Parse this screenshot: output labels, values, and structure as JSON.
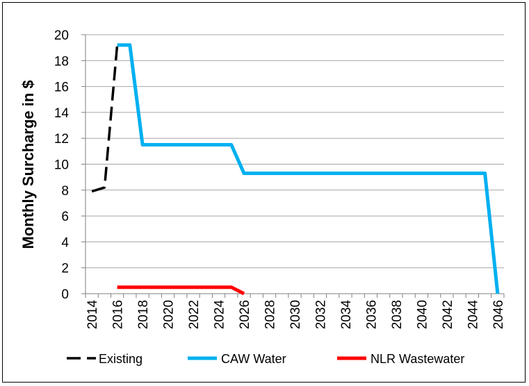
{
  "chart_data": {
    "type": "line",
    "title": "",
    "xlabel": "",
    "ylabel": "Monthly Surcharge in $",
    "xlim": [
      2013.5,
      2046.5
    ],
    "ylim": [
      0,
      20
    ],
    "yticks": [
      "0",
      "2",
      "4",
      "6",
      "8",
      "10",
      "12",
      "14",
      "16",
      "18",
      "20"
    ],
    "xticks": [
      "2014",
      "2016",
      "2018",
      "2020",
      "2022",
      "2024",
      "2026",
      "2028",
      "2030",
      "2032",
      "2034",
      "2036",
      "2038",
      "2040",
      "2042",
      "2044",
      "2046"
    ],
    "grid": true,
    "legend_position": "bottom",
    "series": [
      {
        "name": "Existing",
        "color": "#000000",
        "style": "dashed",
        "points": [
          [
            2014,
            7.9
          ],
          [
            2015,
            8.2
          ],
          [
            2016,
            19.2
          ]
        ]
      },
      {
        "name": "CAW Water",
        "color": "#00B0F0",
        "style": "solid",
        "points": [
          [
            2016,
            19.2
          ],
          [
            2017,
            19.2
          ],
          [
            2018,
            11.5
          ],
          [
            2019,
            11.5
          ],
          [
            2020,
            11.5
          ],
          [
            2021,
            11.5
          ],
          [
            2022,
            11.5
          ],
          [
            2023,
            11.5
          ],
          [
            2024,
            11.5
          ],
          [
            2025,
            11.5
          ],
          [
            2026,
            9.3
          ],
          [
            2027,
            9.3
          ],
          [
            2030,
            9.3
          ],
          [
            2035,
            9.3
          ],
          [
            2040,
            9.3
          ],
          [
            2045,
            9.3
          ],
          [
            2046,
            0
          ]
        ]
      },
      {
        "name": "NLR Wastewater",
        "color": "#FF0000",
        "style": "solid",
        "points": [
          [
            2016,
            0.5
          ],
          [
            2017,
            0.5
          ],
          [
            2018,
            0.5
          ],
          [
            2020,
            0.5
          ],
          [
            2022,
            0.5
          ],
          [
            2024,
            0.5
          ],
          [
            2025,
            0.5
          ],
          [
            2026,
            0
          ]
        ]
      }
    ]
  }
}
